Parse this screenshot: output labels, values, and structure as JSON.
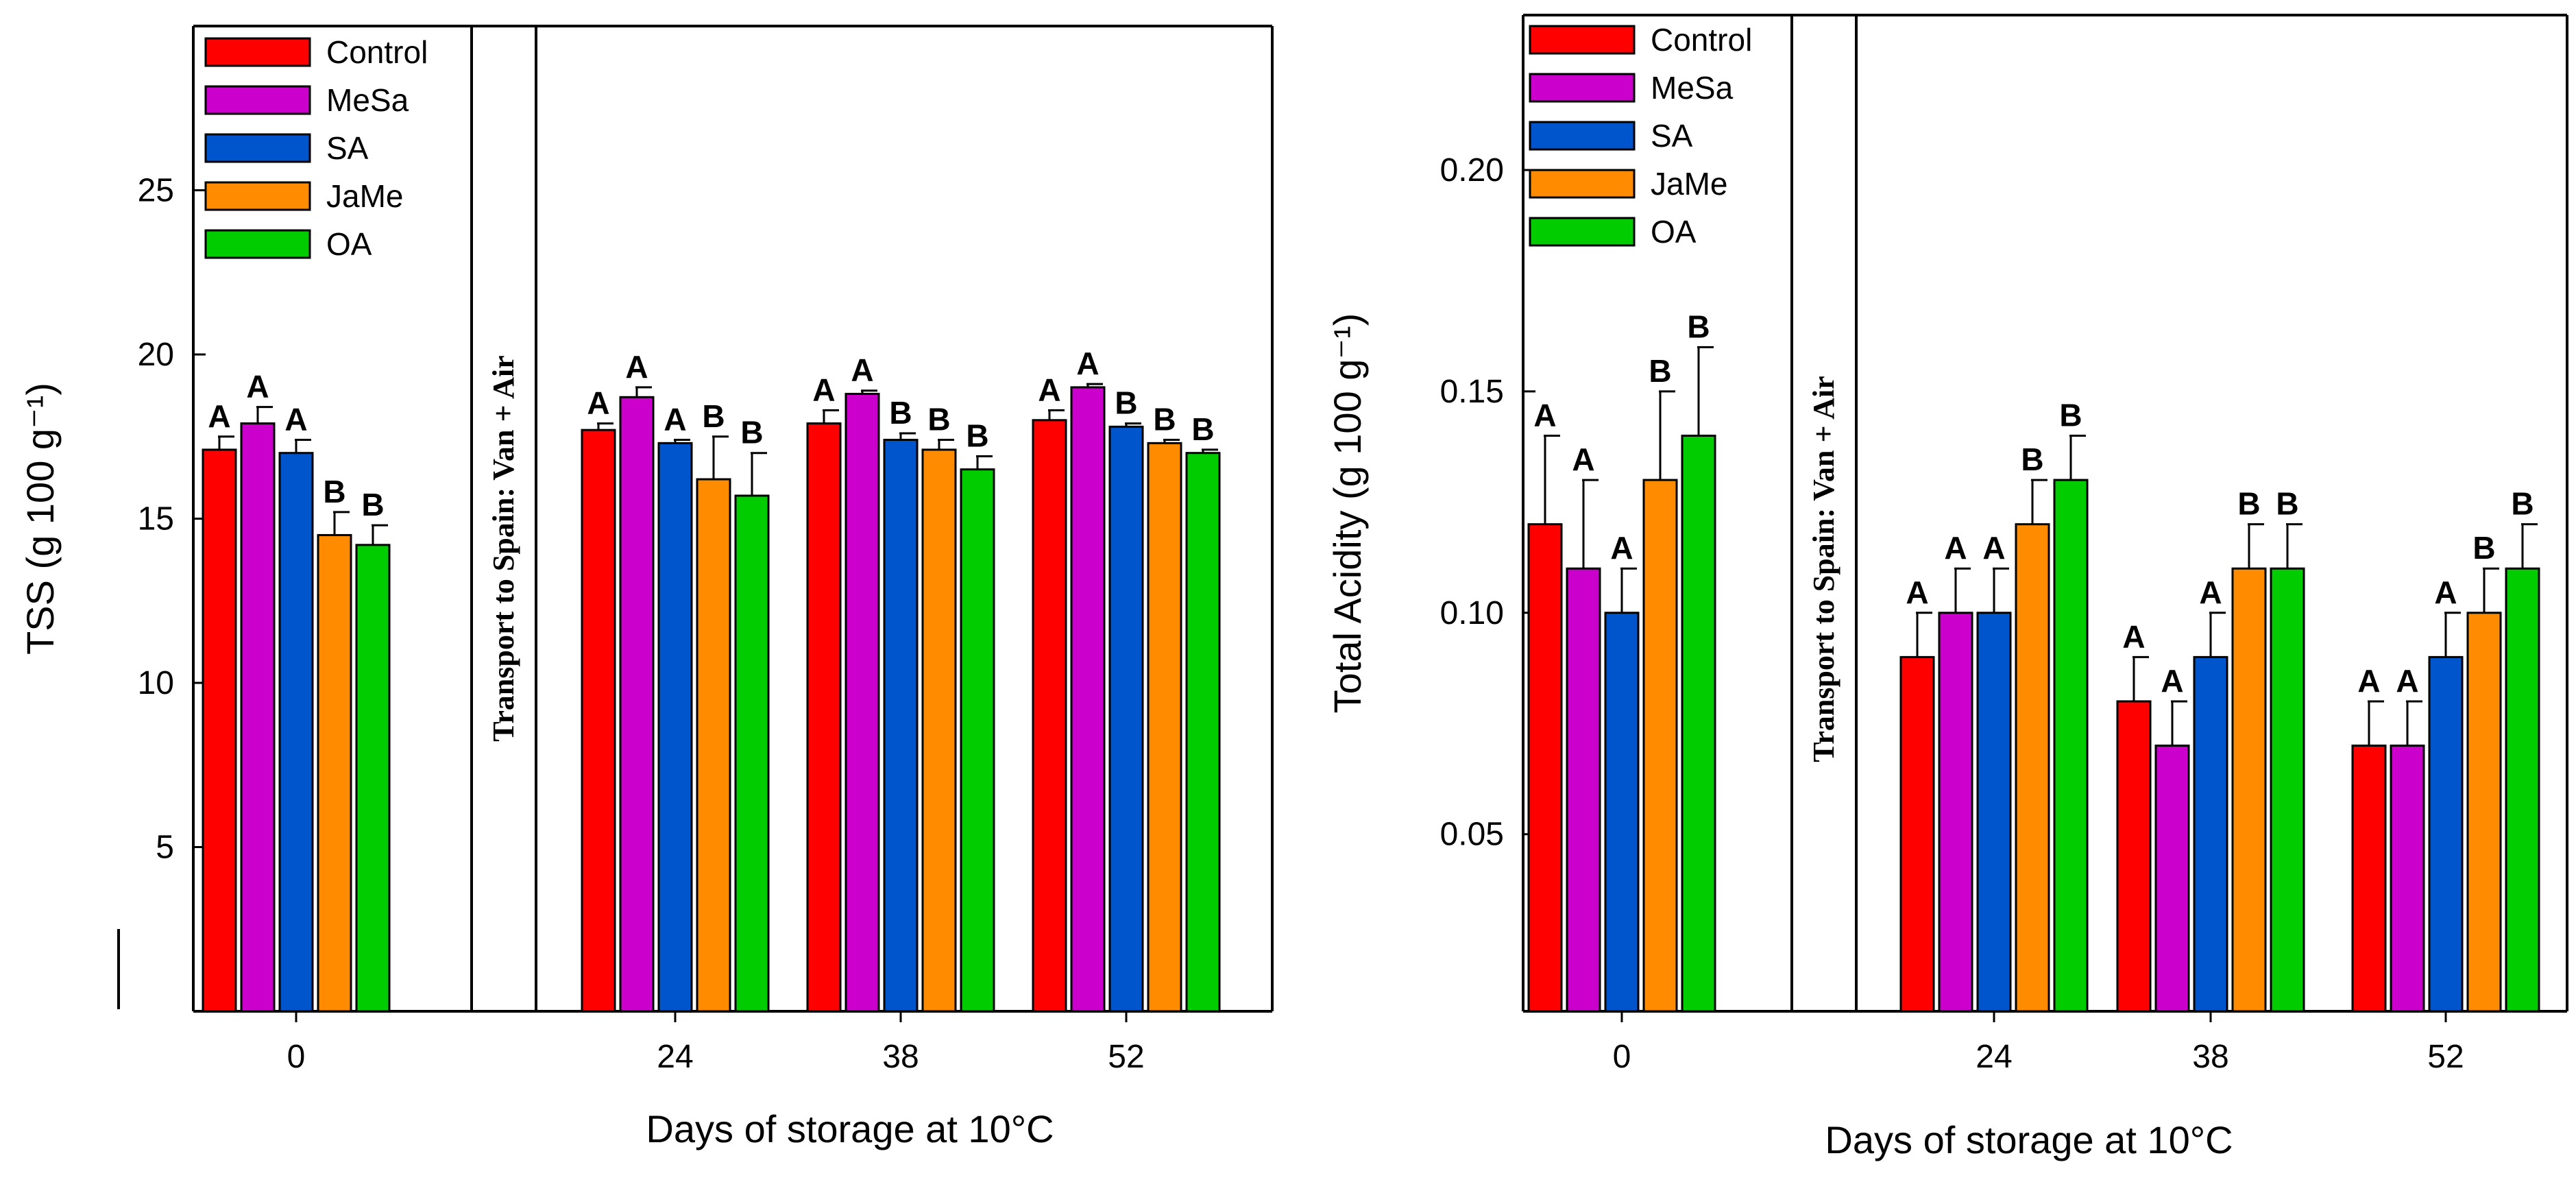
{
  "band_label": "Transport to Spain: Van + Air",
  "colors": {
    "Control": "#ff0000",
    "MeSa": "#cc00cc",
    "SA": "#0055cc",
    "JaMe": "#ff8c00",
    "OA": "#00cc00"
  },
  "chart_data": [
    {
      "type": "bar",
      "categories": [
        "0",
        "24",
        "38",
        "52"
      ],
      "xlabel": "Days of storage at 10°C",
      "ylabel": "TSS (g 100 g⁻¹)",
      "ylim": [
        0,
        30
      ],
      "yticks": [
        5,
        10,
        15,
        20,
        25
      ],
      "legend": "top-left",
      "grid": false,
      "series": [
        {
          "name": "Control",
          "values": [
            17.1,
            17.7,
            17.9,
            18.0
          ],
          "errors": [
            0.4,
            0.2,
            0.4,
            0.3
          ],
          "letters": [
            "A",
            "A",
            "A",
            "A"
          ]
        },
        {
          "name": "MeSa",
          "values": [
            17.9,
            18.7,
            18.8,
            19.0
          ],
          "errors": [
            0.5,
            0.3,
            0.1,
            0.1
          ],
          "letters": [
            "A",
            "A",
            "A",
            "A"
          ]
        },
        {
          "name": "SA",
          "values": [
            17.0,
            17.3,
            17.4,
            17.8
          ],
          "errors": [
            0.4,
            0.1,
            0.2,
            0.1
          ],
          "letters": [
            "A",
            "A",
            "B",
            "B"
          ]
        },
        {
          "name": "JaMe",
          "values": [
            14.5,
            16.2,
            17.1,
            17.3
          ],
          "errors": [
            0.7,
            1.3,
            0.3,
            0.1
          ],
          "letters": [
            "B",
            "B",
            "B",
            "B"
          ]
        },
        {
          "name": "OA",
          "values": [
            14.2,
            15.7,
            16.5,
            17.0
          ],
          "errors": [
            0.6,
            1.3,
            0.4,
            0.1
          ],
          "letters": [
            "B",
            "B",
            "B",
            "B"
          ]
        }
      ]
    },
    {
      "type": "bar",
      "categories": [
        "0",
        "24",
        "38",
        "52"
      ],
      "xlabel": "Days of storage at 10°C",
      "ylabel": "Total Acidity (g 100 g⁻¹)",
      "ylim": [
        0.01,
        0.235
      ],
      "yticks": [
        "0.05",
        "0.10",
        "0.15",
        "0.20"
      ],
      "legend": "top-left",
      "grid": false,
      "series": [
        {
          "name": "Control",
          "values": [
            0.12,
            0.09,
            0.08,
            0.07
          ],
          "errors": [
            0.02,
            0.01,
            0.01,
            0.01
          ],
          "letters": [
            "A",
            "A",
            "A",
            "A"
          ]
        },
        {
          "name": "MeSa",
          "values": [
            0.11,
            0.1,
            0.07,
            0.07
          ],
          "errors": [
            0.02,
            0.01,
            0.01,
            0.01
          ],
          "letters": [
            "A",
            "A",
            "A",
            "A"
          ]
        },
        {
          "name": "SA",
          "values": [
            0.1,
            0.1,
            0.09,
            0.09
          ],
          "errors": [
            0.01,
            0.01,
            0.01,
            0.01
          ],
          "letters": [
            "A",
            "A",
            "A",
            "A"
          ]
        },
        {
          "name": "JaMe",
          "values": [
            0.13,
            0.12,
            0.11,
            0.1
          ],
          "errors": [
            0.02,
            0.01,
            0.01,
            0.01
          ],
          "letters": [
            "B",
            "B",
            "B",
            "B"
          ]
        },
        {
          "name": "OA",
          "values": [
            0.14,
            0.13,
            0.11,
            0.11
          ],
          "errors": [
            0.02,
            0.01,
            0.01,
            0.01
          ],
          "letters": [
            "B",
            "B",
            "B",
            "B"
          ]
        }
      ]
    }
  ]
}
